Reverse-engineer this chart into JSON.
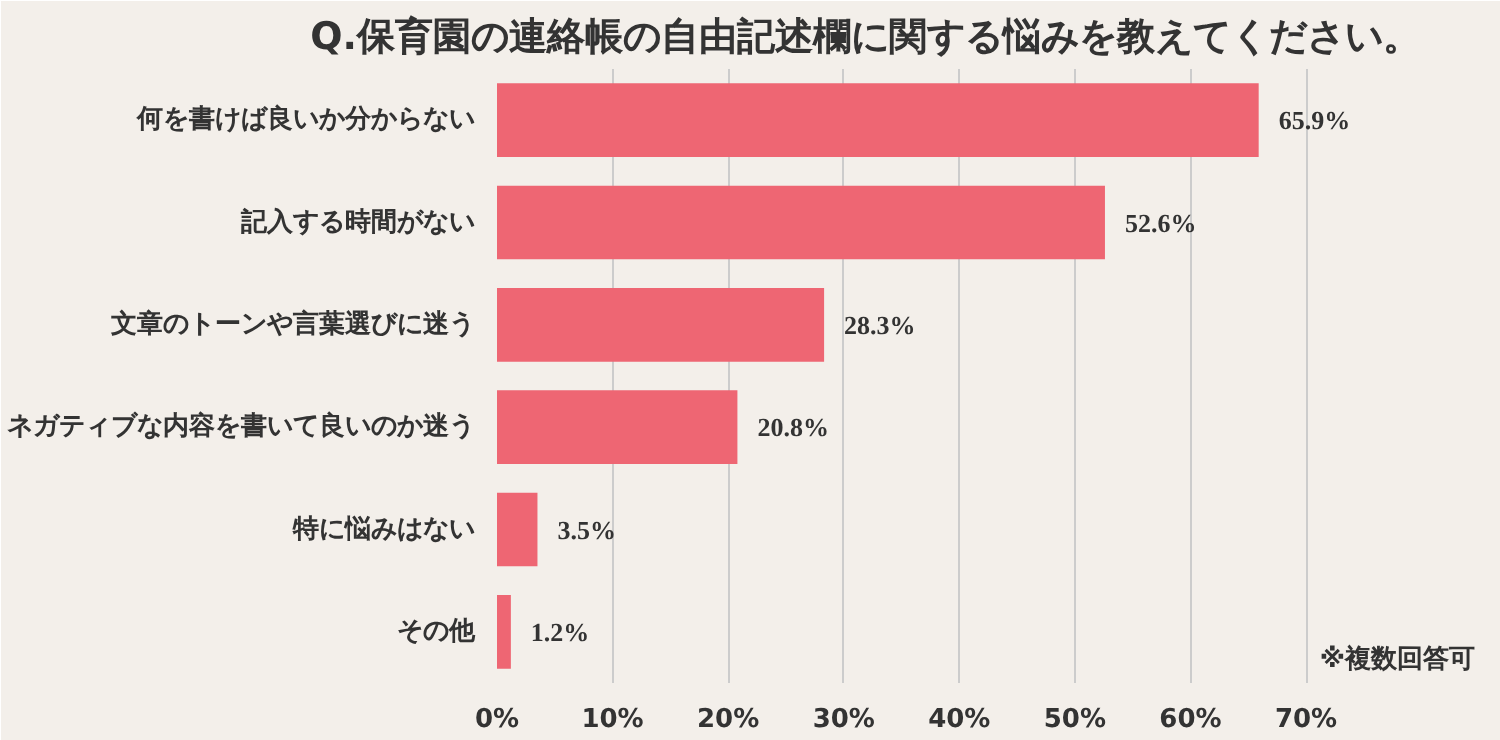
{
  "chart_data": {
    "type": "bar",
    "orientation": "horizontal",
    "title": "Q.保育園の連絡帳の自由記述欄に関する悩みを教えてください。",
    "categories": [
      "何を書けば良いか分からない",
      "記入する時間がない",
      "文章のトーンや言葉選びに迷う",
      "ネガティブな内容を書いて良いのか迷う",
      "特に悩みはない",
      "その他"
    ],
    "values": [
      65.9,
      52.6,
      28.3,
      20.8,
      3.5,
      1.2
    ],
    "value_labels": [
      "65.9%",
      "52.6%",
      "28.3%",
      "20.8%",
      "3.5%",
      "1.2%"
    ],
    "color": "#ee6673",
    "xlim": [
      0,
      86
    ],
    "xticks": [
      {
        "value": 0,
        "label": "0%"
      },
      {
        "value": 10,
        "label": "10%"
      },
      {
        "value": 20,
        "label": "20%"
      },
      {
        "value": 30,
        "label": "30%"
      },
      {
        "value": 40,
        "label": "40%"
      },
      {
        "value": 50,
        "label": "50%"
      },
      {
        "value": 60,
        "label": "60%"
      },
      {
        "value": 70,
        "label": "70%"
      }
    ],
    "grid": "x",
    "annotations": [
      "※複数回答可"
    ]
  }
}
